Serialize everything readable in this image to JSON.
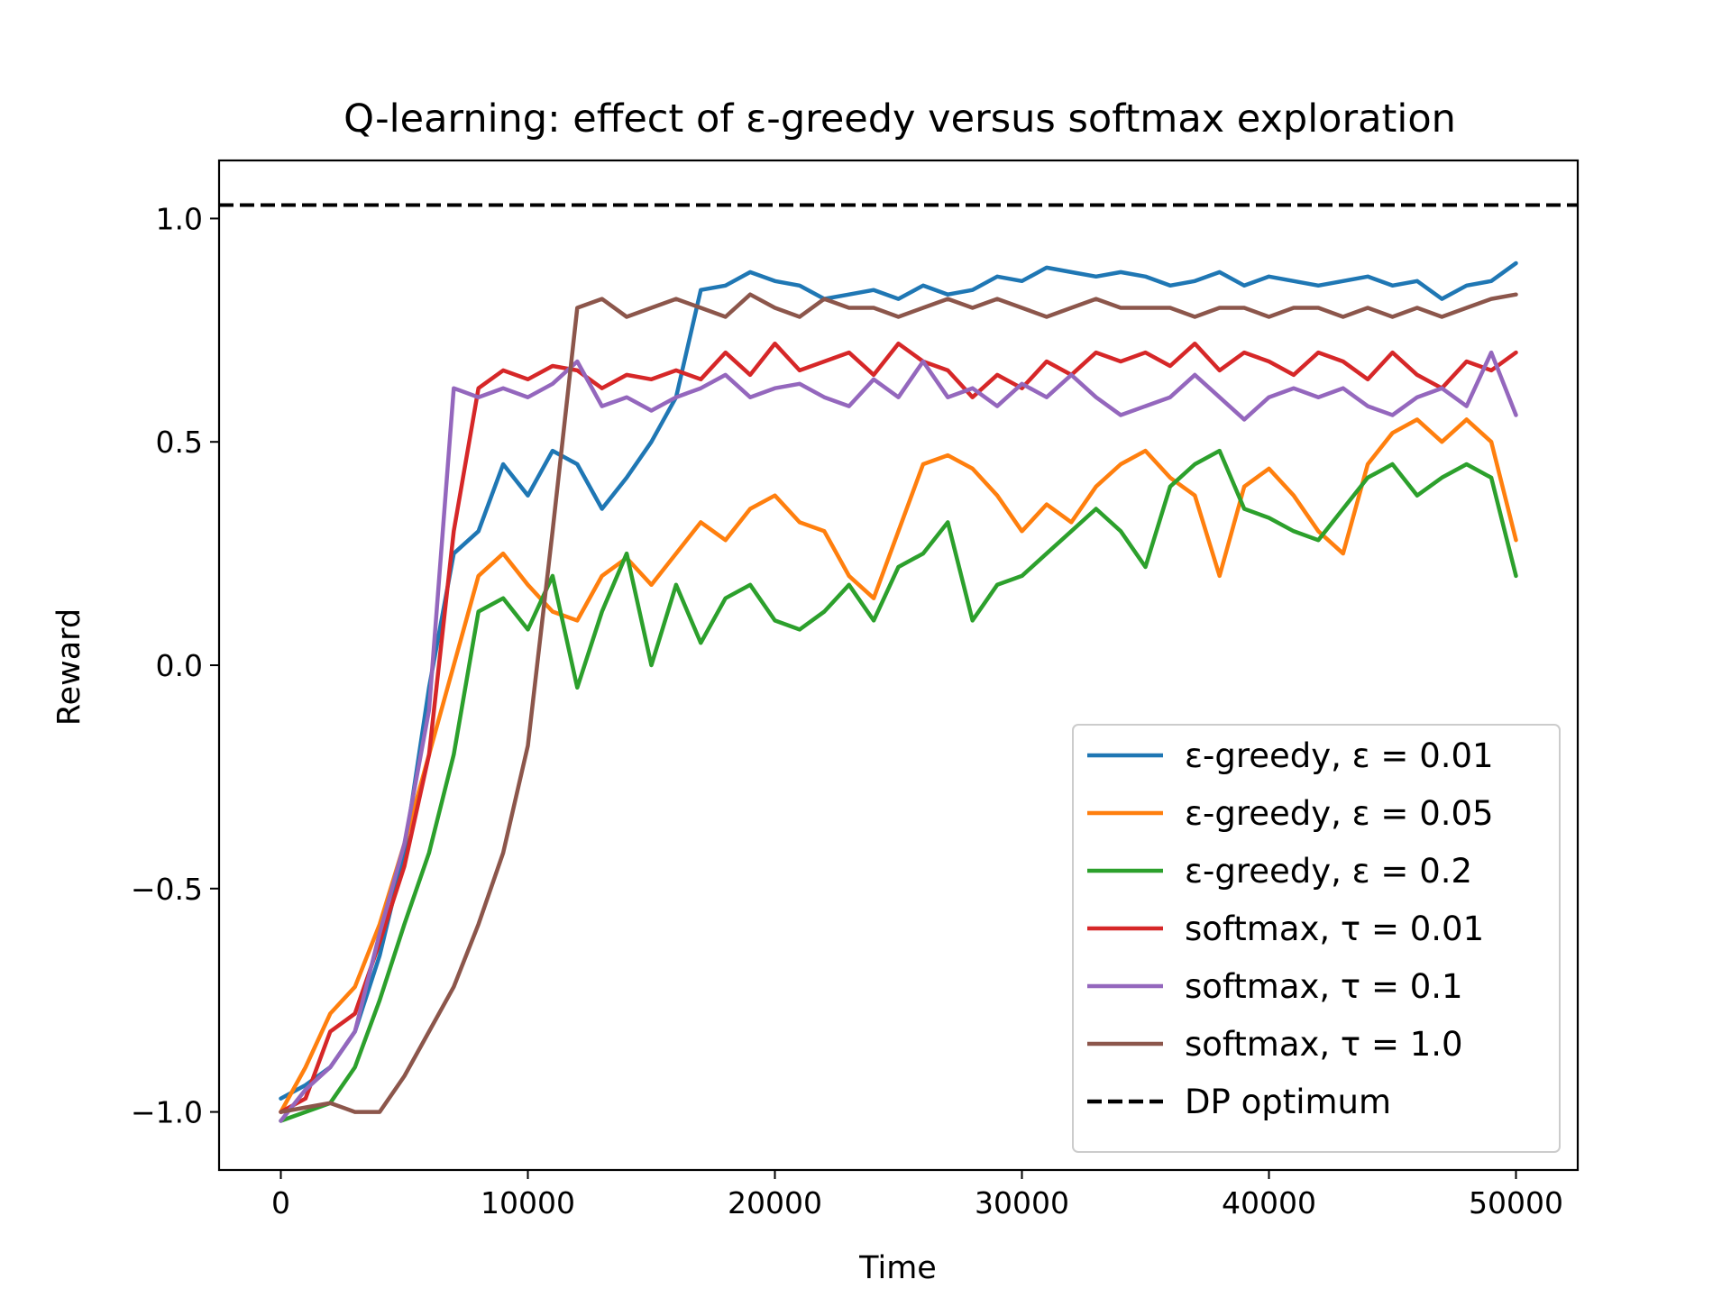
{
  "chart_data": {
    "type": "line",
    "title": "Q-learning: effect of ε-greedy versus softmax exploration",
    "xlabel": "Time",
    "ylabel": "Reward",
    "xlim": [
      -2500,
      52500
    ],
    "ylim": [
      -1.13,
      1.13
    ],
    "xticks": [
      0,
      10000,
      20000,
      30000,
      40000,
      50000
    ],
    "xtick_labels": [
      "0",
      "10000",
      "20000",
      "30000",
      "40000",
      "50000"
    ],
    "yticks": [
      -1.0,
      -0.5,
      0.0,
      0.5,
      1.0
    ],
    "ytick_labels": [
      "−1.0",
      "−0.5",
      "0.0",
      "0.5",
      "1.0"
    ],
    "grid": false,
    "legend_position": "lower-right",
    "reference_line": {
      "name": "DP optimum",
      "y": 1.03,
      "color": "#000000",
      "style": "dashed"
    },
    "series": [
      {
        "name": "ε-greedy, ε = 0.01",
        "color": "#1f77b4",
        "x": [
          0,
          1000,
          2000,
          3000,
          4000,
          5000,
          6000,
          7000,
          8000,
          9000,
          10000,
          11000,
          12000,
          13000,
          14000,
          15000,
          16000,
          17000,
          18000,
          19000,
          20000,
          21000,
          22000,
          23000,
          24000,
          25000,
          26000,
          27000,
          28000,
          29000,
          30000,
          31000,
          32000,
          33000,
          34000,
          35000,
          36000,
          37000,
          38000,
          39000,
          40000,
          41000,
          42000,
          43000,
          44000,
          45000,
          46000,
          47000,
          48000,
          49000,
          50000
        ],
        "y": [
          -0.97,
          -0.94,
          -0.9,
          -0.82,
          -0.65,
          -0.42,
          -0.05,
          0.25,
          0.3,
          0.45,
          0.38,
          0.48,
          0.45,
          0.35,
          0.42,
          0.5,
          0.6,
          0.84,
          0.85,
          0.88,
          0.86,
          0.85,
          0.82,
          0.83,
          0.84,
          0.82,
          0.85,
          0.83,
          0.84,
          0.87,
          0.86,
          0.89,
          0.88,
          0.87,
          0.88,
          0.87,
          0.85,
          0.86,
          0.88,
          0.85,
          0.87,
          0.86,
          0.85,
          0.86,
          0.87,
          0.85,
          0.86,
          0.82,
          0.85,
          0.86,
          0.9
        ]
      },
      {
        "name": "ε-greedy, ε = 0.05",
        "color": "#ff7f0e",
        "x": [
          0,
          1000,
          2000,
          3000,
          4000,
          5000,
          6000,
          7000,
          8000,
          9000,
          10000,
          11000,
          12000,
          13000,
          14000,
          15000,
          16000,
          17000,
          18000,
          19000,
          20000,
          21000,
          22000,
          23000,
          24000,
          25000,
          26000,
          27000,
          28000,
          29000,
          30000,
          31000,
          32000,
          33000,
          34000,
          35000,
          36000,
          37000,
          38000,
          39000,
          40000,
          41000,
          42000,
          43000,
          44000,
          45000,
          46000,
          47000,
          48000,
          49000,
          50000
        ],
        "y": [
          -1.0,
          -0.9,
          -0.78,
          -0.72,
          -0.58,
          -0.4,
          -0.2,
          0.0,
          0.2,
          0.25,
          0.18,
          0.12,
          0.1,
          0.2,
          0.24,
          0.18,
          0.25,
          0.32,
          0.28,
          0.35,
          0.38,
          0.32,
          0.3,
          0.2,
          0.15,
          0.3,
          0.45,
          0.47,
          0.44,
          0.38,
          0.3,
          0.36,
          0.32,
          0.4,
          0.45,
          0.48,
          0.42,
          0.38,
          0.2,
          0.4,
          0.44,
          0.38,
          0.3,
          0.25,
          0.45,
          0.52,
          0.55,
          0.5,
          0.55,
          0.5,
          0.28
        ]
      },
      {
        "name": "ε-greedy, ε = 0.2",
        "color": "#2ca02c",
        "x": [
          0,
          1000,
          2000,
          3000,
          4000,
          5000,
          6000,
          7000,
          8000,
          9000,
          10000,
          11000,
          12000,
          13000,
          14000,
          15000,
          16000,
          17000,
          18000,
          19000,
          20000,
          21000,
          22000,
          23000,
          24000,
          25000,
          26000,
          27000,
          28000,
          29000,
          30000,
          31000,
          32000,
          33000,
          34000,
          35000,
          36000,
          37000,
          38000,
          39000,
          40000,
          41000,
          42000,
          43000,
          44000,
          45000,
          46000,
          47000,
          48000,
          49000,
          50000
        ],
        "y": [
          -1.02,
          -1.0,
          -0.98,
          -0.9,
          -0.75,
          -0.58,
          -0.42,
          -0.2,
          0.12,
          0.15,
          0.08,
          0.2,
          -0.05,
          0.12,
          0.25,
          0.0,
          0.18,
          0.05,
          0.15,
          0.18,
          0.1,
          0.08,
          0.12,
          0.18,
          0.1,
          0.22,
          0.25,
          0.32,
          0.1,
          0.18,
          0.2,
          0.25,
          0.3,
          0.35,
          0.3,
          0.22,
          0.4,
          0.45,
          0.48,
          0.35,
          0.33,
          0.3,
          0.28,
          0.35,
          0.42,
          0.45,
          0.38,
          0.42,
          0.45,
          0.42,
          0.2
        ]
      },
      {
        "name": "softmax, τ = 0.01",
        "color": "#d62728",
        "x": [
          0,
          1000,
          2000,
          3000,
          4000,
          5000,
          6000,
          7000,
          8000,
          9000,
          10000,
          11000,
          12000,
          13000,
          14000,
          15000,
          16000,
          17000,
          18000,
          19000,
          20000,
          21000,
          22000,
          23000,
          24000,
          25000,
          26000,
          27000,
          28000,
          29000,
          30000,
          31000,
          32000,
          33000,
          34000,
          35000,
          36000,
          37000,
          38000,
          39000,
          40000,
          41000,
          42000,
          43000,
          44000,
          45000,
          46000,
          47000,
          48000,
          49000,
          50000
        ],
        "y": [
          -1.0,
          -0.97,
          -0.82,
          -0.78,
          -0.62,
          -0.45,
          -0.2,
          0.3,
          0.62,
          0.66,
          0.64,
          0.67,
          0.66,
          0.62,
          0.65,
          0.64,
          0.66,
          0.64,
          0.7,
          0.65,
          0.72,
          0.66,
          0.68,
          0.7,
          0.65,
          0.72,
          0.68,
          0.66,
          0.6,
          0.65,
          0.62,
          0.68,
          0.65,
          0.7,
          0.68,
          0.7,
          0.67,
          0.72,
          0.66,
          0.7,
          0.68,
          0.65,
          0.7,
          0.68,
          0.64,
          0.7,
          0.65,
          0.62,
          0.68,
          0.66,
          0.7
        ]
      },
      {
        "name": "softmax, τ = 0.1",
        "color": "#9467bd",
        "x": [
          0,
          1000,
          2000,
          3000,
          4000,
          5000,
          6000,
          7000,
          8000,
          9000,
          10000,
          11000,
          12000,
          13000,
          14000,
          15000,
          16000,
          17000,
          18000,
          19000,
          20000,
          21000,
          22000,
          23000,
          24000,
          25000,
          26000,
          27000,
          28000,
          29000,
          30000,
          31000,
          32000,
          33000,
          34000,
          35000,
          36000,
          37000,
          38000,
          39000,
          40000,
          41000,
          42000,
          43000,
          44000,
          45000,
          46000,
          47000,
          48000,
          49000,
          50000
        ],
        "y": [
          -1.02,
          -0.95,
          -0.9,
          -0.82,
          -0.6,
          -0.4,
          -0.1,
          0.62,
          0.6,
          0.62,
          0.6,
          0.63,
          0.68,
          0.58,
          0.6,
          0.57,
          0.6,
          0.62,
          0.65,
          0.6,
          0.62,
          0.63,
          0.6,
          0.58,
          0.64,
          0.6,
          0.68,
          0.6,
          0.62,
          0.58,
          0.63,
          0.6,
          0.65,
          0.6,
          0.56,
          0.58,
          0.6,
          0.65,
          0.6,
          0.55,
          0.6,
          0.62,
          0.6,
          0.62,
          0.58,
          0.56,
          0.6,
          0.62,
          0.58,
          0.7,
          0.56
        ]
      },
      {
        "name": "softmax, τ = 1.0",
        "color": "#8c564b",
        "x": [
          0,
          1000,
          2000,
          3000,
          4000,
          5000,
          6000,
          7000,
          8000,
          9000,
          10000,
          11000,
          12000,
          13000,
          14000,
          15000,
          16000,
          17000,
          18000,
          19000,
          20000,
          21000,
          22000,
          23000,
          24000,
          25000,
          26000,
          27000,
          28000,
          29000,
          30000,
          31000,
          32000,
          33000,
          34000,
          35000,
          36000,
          37000,
          38000,
          39000,
          40000,
          41000,
          42000,
          43000,
          44000,
          45000,
          46000,
          47000,
          48000,
          49000,
          50000
        ],
        "y": [
          -1.0,
          -0.99,
          -0.98,
          -1.0,
          -1.0,
          -0.92,
          -0.82,
          -0.72,
          -0.58,
          -0.42,
          -0.18,
          0.3,
          0.8,
          0.82,
          0.78,
          0.8,
          0.82,
          0.8,
          0.78,
          0.83,
          0.8,
          0.78,
          0.82,
          0.8,
          0.8,
          0.78,
          0.8,
          0.82,
          0.8,
          0.82,
          0.8,
          0.78,
          0.8,
          0.82,
          0.8,
          0.8,
          0.8,
          0.78,
          0.8,
          0.8,
          0.78,
          0.8,
          0.8,
          0.78,
          0.8,
          0.78,
          0.8,
          0.78,
          0.8,
          0.82,
          0.83
        ]
      }
    ]
  }
}
